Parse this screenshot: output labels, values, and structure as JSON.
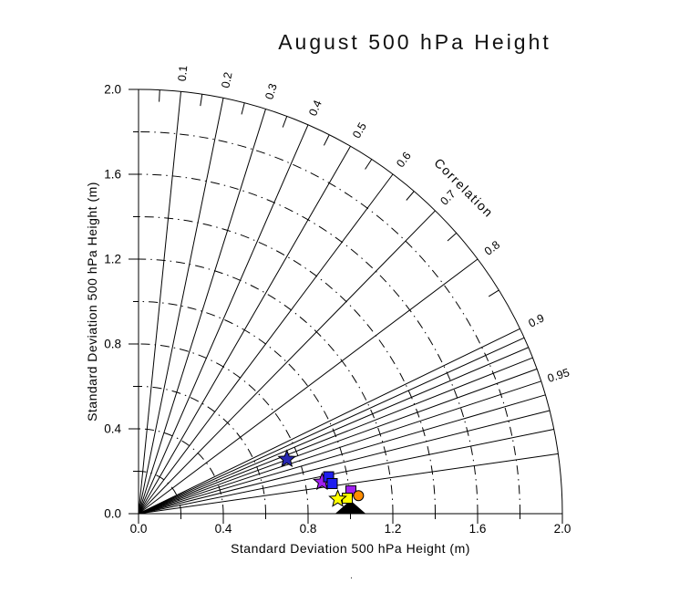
{
  "title": "August 500 hPa Height",
  "stray_dot": ".",
  "chart_data": {
    "type": "taylor_diagram",
    "title": "August 500 hPa Height",
    "xlabel": "Standard Deviation 500 hPa Height (m)",
    "ylabel": "Standard Deviation 500 hPa Height (m)",
    "axis_max": 2.0,
    "axis_tick_labels": [
      "0.0",
      "0.4",
      "0.8",
      "1.2",
      "1.6",
      "2.0"
    ],
    "axis_minor_ticks": [
      0.2,
      0.6,
      1.0,
      1.4,
      1.8
    ],
    "std_arcs_dashdot": [
      0.2,
      0.4,
      0.6,
      0.8,
      1.0,
      1.2,
      1.4,
      1.6,
      1.8
    ],
    "outer_arc": 2.0,
    "grid_style": "dash-dot",
    "correlation": {
      "label": "Correlation",
      "rays": [
        0.1,
        0.2,
        0.3,
        0.4,
        0.5,
        0.6,
        0.7,
        0.8,
        0.9,
        0.91,
        0.92,
        0.93,
        0.94,
        0.95,
        0.96,
        0.97,
        0.98,
        0.99
      ],
      "labeled": [
        "0.1",
        "0.2",
        "0.3",
        "0.4",
        "0.5",
        "0.6",
        "0.7",
        "0.8",
        "0.9",
        "0.95"
      ],
      "rim_ticks": [
        0.05,
        0.15,
        0.25,
        0.35,
        0.45,
        0.55,
        0.65,
        0.75,
        0.85
      ]
    },
    "markers": [
      {
        "name": "black-triangle-reference",
        "shape": "triangle",
        "color": "#000000",
        "x": 1.0,
        "y": 0.0,
        "std": 1.0,
        "correlation": 1.0
      },
      {
        "name": "purple-star",
        "shape": "star",
        "color": "#a020f0",
        "x": 0.866,
        "y": 0.149,
        "std": 0.879,
        "correlation": 0.985
      },
      {
        "name": "blue-square-1",
        "shape": "square",
        "color": "#1f1ff0",
        "x": 0.897,
        "y": 0.174,
        "std": 0.914,
        "correlation": 0.981
      },
      {
        "name": "blue-square-2",
        "shape": "square",
        "color": "#1f1ff0",
        "x": 0.914,
        "y": 0.142,
        "std": 0.925,
        "correlation": 0.988
      },
      {
        "name": "purple-square",
        "shape": "square",
        "color": "#a020f0",
        "x": 1.002,
        "y": 0.108,
        "std": 1.008,
        "correlation": 0.994
      },
      {
        "name": "yellow-square",
        "shape": "square",
        "color": "#ffff00",
        "x": 0.985,
        "y": 0.073,
        "std": 0.988,
        "correlation": 0.997
      },
      {
        "name": "yellow-star",
        "shape": "star",
        "color": "#ffff00",
        "x": 0.94,
        "y": 0.069,
        "std": 0.943,
        "correlation": 0.997
      },
      {
        "name": "blue-star",
        "shape": "star",
        "color": "#2828b4",
        "x": 0.7,
        "y": 0.257,
        "std": 0.746,
        "correlation": 0.939
      },
      {
        "name": "orange-circle",
        "shape": "circle",
        "color": "#ff8c00",
        "x": 1.038,
        "y": 0.085,
        "std": 1.041,
        "correlation": 0.997
      }
    ]
  }
}
